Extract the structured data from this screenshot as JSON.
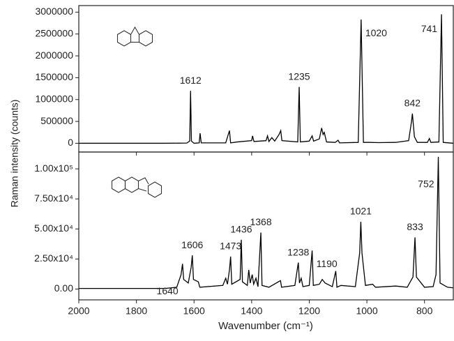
{
  "chart_data": [
    {
      "type": "line",
      "ylabel": "Raman intensity (counts)",
      "color": "#000000",
      "xlim": [
        2000,
        700
      ],
      "ylim": [
        -200000,
        3150000
      ],
      "yticks": [
        0,
        500000,
        1000000,
        1500000,
        2000000,
        2500000,
        3000000
      ],
      "x": [
        2000,
        1700,
        1625,
        1615,
        1612,
        1609,
        1600,
        1582,
        1579,
        1575,
        1490,
        1477,
        1473,
        1450,
        1400,
        1397,
        1392,
        1350,
        1345,
        1340,
        1330,
        1320,
        1305,
        1299,
        1295,
        1240,
        1235,
        1231,
        1200,
        1190,
        1185,
        1165,
        1157,
        1152,
        1148,
        1140,
        1110,
        1100,
        1095,
        1030,
        1020,
        1012,
        990,
        960,
        900,
        855,
        845,
        842,
        835,
        825,
        790,
        783,
        778,
        750,
        741,
        735,
        700
      ],
      "values": [
        0,
        0,
        5000,
        50000,
        1200000,
        50000,
        0,
        10000,
        230000,
        10000,
        10000,
        290000,
        10000,
        30000,
        60000,
        170000,
        40000,
        60000,
        170000,
        40000,
        130000,
        50000,
        200000,
        290000,
        60000,
        30000,
        1290000,
        30000,
        50000,
        170000,
        50000,
        100000,
        350000,
        200000,
        250000,
        30000,
        20000,
        70000,
        10000,
        20000,
        2830000,
        20000,
        20000,
        15000,
        20000,
        60000,
        500000,
        680000,
        150000,
        20000,
        20000,
        110000,
        20000,
        30000,
        2950000,
        20000,
        0
      ],
      "peak_labels": [
        1612,
        1235,
        1020,
        842,
        741
      ]
    },
    {
      "type": "line",
      "xlabel": "Wavenumber (cm⁻¹)",
      "color": "#000000",
      "xlim": [
        2000,
        700
      ],
      "ylim": [
        -9000,
        114000
      ],
      "xticks": [
        2000,
        1800,
        1600,
        1400,
        1200,
        1000,
        800
      ],
      "yticks": [
        {
          "value": 0,
          "label": "0.00"
        },
        {
          "value": 25000,
          "label": "2.50x10⁴"
        },
        {
          "value": 50000,
          "label": "5.00x10⁴"
        },
        {
          "value": 75000,
          "label": "7.50x10⁴"
        },
        {
          "value": 100000,
          "label": "1.00x10⁵"
        }
      ],
      "x": [
        2000,
        1700,
        1660,
        1645,
        1640,
        1636,
        1620,
        1610,
        1606,
        1602,
        1585,
        1580,
        1500,
        1490,
        1484,
        1477,
        1473,
        1469,
        1440,
        1436,
        1432,
        1415,
        1410,
        1405,
        1398,
        1393,
        1385,
        1378,
        1368,
        1364,
        1340,
        1300,
        1296,
        1250,
        1238,
        1234,
        1228,
        1222,
        1200,
        1190,
        1186,
        1165,
        1155,
        1145,
        1120,
        1108,
        1104,
        1090,
        1040,
        1025,
        1021,
        1017,
        1005,
        980,
        970,
        900,
        860,
        840,
        833,
        828,
        800,
        770,
        760,
        752,
        746,
        720,
        700
      ],
      "values": [
        500,
        500,
        1500,
        12000,
        21000,
        8000,
        5000,
        18000,
        28000,
        8000,
        6000,
        1500,
        3000,
        9000,
        4000,
        16000,
        27000,
        4000,
        8000,
        41000,
        6000,
        3000,
        16000,
        5000,
        12000,
        4000,
        9000,
        2000,
        47000,
        3000,
        1500,
        7000,
        1500,
        3000,
        22000,
        5000,
        9000,
        2000,
        3000,
        32000,
        3000,
        4000,
        8000,
        5000,
        2000,
        15000,
        1500,
        3000,
        2000,
        30000,
        56000,
        30000,
        3000,
        4000,
        1500,
        2500,
        1500,
        10000,
        43000,
        10000,
        1500,
        2000,
        12000,
        110000,
        5000,
        1500,
        1000
      ],
      "peak_labels": [
        1640,
        1606,
        1473,
        1436,
        1368,
        1238,
        1190,
        1021,
        833,
        752
      ]
    }
  ]
}
